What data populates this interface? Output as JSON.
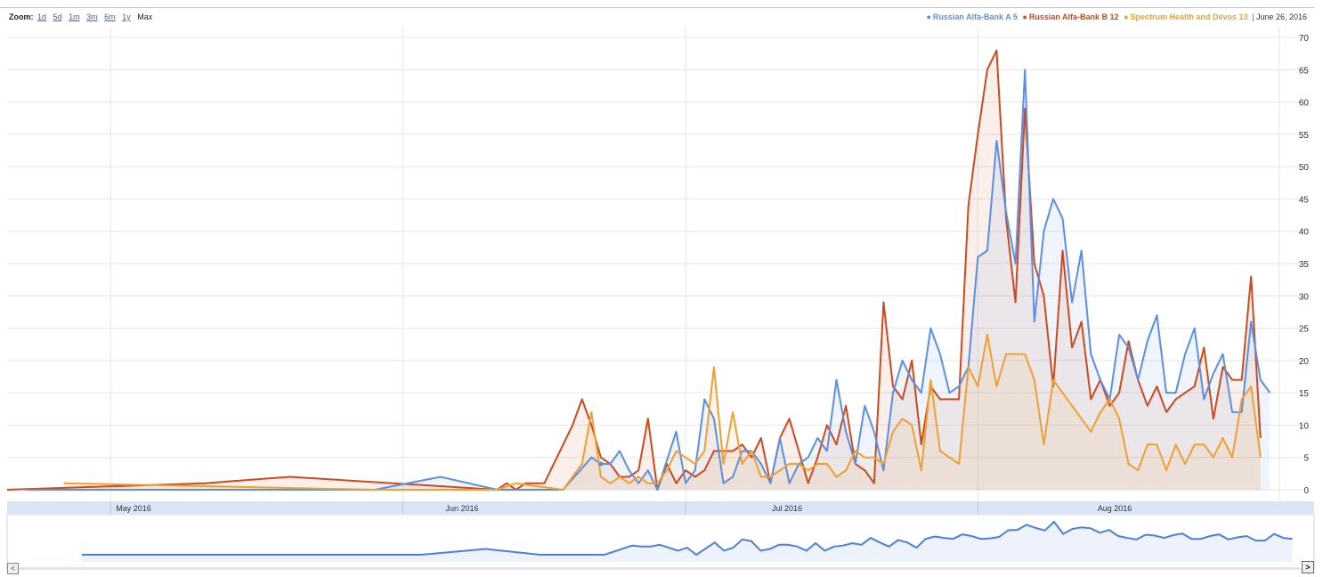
{
  "zoom": {
    "label": "Zoom:",
    "options": [
      "1d",
      "5d",
      "1m",
      "3m",
      "6m",
      "1y"
    ],
    "current": "Max"
  },
  "legend": {
    "items": [
      {
        "label": "Russian Alfa-Bank A 5",
        "color": "#5b8fe6"
      },
      {
        "label": "Russian Alfa-Bank B 12",
        "color": "#cc4a1e"
      },
      {
        "label": "Spectrum Health and Devos 13",
        "color": "#f0a030"
      }
    ],
    "date": "June 26, 2016"
  },
  "colors": {
    "axis_band": "#d9e4f5",
    "grid": "#e6e6e6",
    "navigator_line": "#4d7fe0",
    "navigator_fill": "#eef3fb"
  },
  "chart_data": {
    "type": "area",
    "title": "",
    "xlabel": "",
    "ylabel": "",
    "x_range": [
      "2016-04-20",
      "2016-09-02"
    ],
    "ylim": [
      0,
      70
    ],
    "y_ticks": [
      0,
      5,
      10,
      15,
      20,
      25,
      30,
      35,
      40,
      45,
      50,
      55,
      60,
      65,
      70
    ],
    "x_tick_labels": [
      {
        "label": "May 2016",
        "date": "2016-05-01"
      },
      {
        "label": "Jun 2016",
        "date": "2016-06-01"
      },
      {
        "label": "Jul 2016",
        "date": "2016-07-01"
      },
      {
        "label": "Aug 2016",
        "date": "2016-08-01"
      }
    ],
    "grid": true,
    "legend_position": "top-right",
    "series": [
      {
        "name": "Russian Alfa-Bank A 5",
        "color": "#5b8fe6",
        "points": [
          [
            "2016-04-22",
            0
          ],
          [
            "2016-05-29",
            0
          ],
          [
            "2016-06-05",
            2
          ],
          [
            "2016-06-11",
            0
          ],
          [
            "2016-06-18",
            0
          ],
          [
            "2016-06-21",
            5
          ],
          [
            "2016-06-22",
            4
          ],
          [
            "2016-06-23",
            4
          ],
          [
            "2016-06-24",
            6
          ],
          [
            "2016-06-25",
            3
          ],
          [
            "2016-06-26",
            1
          ],
          [
            "2016-06-27",
            3
          ],
          [
            "2016-06-28",
            0
          ],
          [
            "2016-06-30",
            9
          ],
          [
            "2016-07-01",
            1
          ],
          [
            "2016-07-02",
            3
          ],
          [
            "2016-07-03",
            14
          ],
          [
            "2016-07-04",
            11
          ],
          [
            "2016-07-05",
            1
          ],
          [
            "2016-07-06",
            2
          ],
          [
            "2016-07-07",
            6
          ],
          [
            "2016-07-08",
            6
          ],
          [
            "2016-07-09",
            4
          ],
          [
            "2016-07-10",
            1
          ],
          [
            "2016-07-11",
            8
          ],
          [
            "2016-07-12",
            1
          ],
          [
            "2016-07-13",
            4
          ],
          [
            "2016-07-14",
            5
          ],
          [
            "2016-07-15",
            8
          ],
          [
            "2016-07-16",
            6
          ],
          [
            "2016-07-17",
            17
          ],
          [
            "2016-07-18",
            9
          ],
          [
            "2016-07-19",
            4
          ],
          [
            "2016-07-20",
            13
          ],
          [
            "2016-07-21",
            9
          ],
          [
            "2016-07-22",
            3
          ],
          [
            "2016-07-23",
            15
          ],
          [
            "2016-07-24",
            20
          ],
          [
            "2016-07-25",
            17
          ],
          [
            "2016-07-26",
            15
          ],
          [
            "2016-07-27",
            25
          ],
          [
            "2016-07-28",
            21
          ],
          [
            "2016-07-29",
            15
          ],
          [
            "2016-07-30",
            16
          ],
          [
            "2016-07-31",
            19
          ],
          [
            "2016-08-01",
            36
          ],
          [
            "2016-08-02",
            37
          ],
          [
            "2016-08-03",
            54
          ],
          [
            "2016-08-04",
            43
          ],
          [
            "2016-08-05",
            35
          ],
          [
            "2016-08-06",
            65
          ],
          [
            "2016-08-07",
            26
          ],
          [
            "2016-08-08",
            40
          ],
          [
            "2016-08-09",
            45
          ],
          [
            "2016-08-10",
            42
          ],
          [
            "2016-08-11",
            29
          ],
          [
            "2016-08-12",
            37
          ],
          [
            "2016-08-13",
            21
          ],
          [
            "2016-08-14",
            17
          ],
          [
            "2016-08-15",
            14
          ],
          [
            "2016-08-16",
            24
          ],
          [
            "2016-08-17",
            22
          ],
          [
            "2016-08-18",
            17
          ],
          [
            "2016-08-19",
            23
          ],
          [
            "2016-08-20",
            27
          ],
          [
            "2016-08-21",
            15
          ],
          [
            "2016-08-22",
            15
          ],
          [
            "2016-08-23",
            21
          ],
          [
            "2016-08-24",
            25
          ],
          [
            "2016-08-25",
            14
          ],
          [
            "2016-08-26",
            18
          ],
          [
            "2016-08-27",
            21
          ],
          [
            "2016-08-28",
            12
          ],
          [
            "2016-08-29",
            12
          ],
          [
            "2016-08-30",
            26
          ],
          [
            "2016-08-31",
            17
          ],
          [
            "2016-09-01",
            15
          ]
        ]
      },
      {
        "name": "Russian Alfa-Bank B 12",
        "color": "#cc4a1e",
        "points": [
          [
            "2016-04-20",
            0
          ],
          [
            "2016-05-11",
            1
          ],
          [
            "2016-05-20",
            2
          ],
          [
            "2016-06-11",
            0
          ],
          [
            "2016-06-12",
            1
          ],
          [
            "2016-06-13",
            0
          ],
          [
            "2016-06-14",
            1
          ],
          [
            "2016-06-16",
            1
          ],
          [
            "2016-06-19",
            10
          ],
          [
            "2016-06-20",
            14
          ],
          [
            "2016-06-21",
            10
          ],
          [
            "2016-06-22",
            5
          ],
          [
            "2016-06-23",
            4
          ],
          [
            "2016-06-24",
            2
          ],
          [
            "2016-06-25",
            2
          ],
          [
            "2016-06-26",
            3
          ],
          [
            "2016-06-27",
            11
          ],
          [
            "2016-06-28",
            0
          ],
          [
            "2016-06-29",
            4
          ],
          [
            "2016-06-30",
            1
          ],
          [
            "2016-07-01",
            3
          ],
          [
            "2016-07-02",
            2
          ],
          [
            "2016-07-03",
            3
          ],
          [
            "2016-07-04",
            6
          ],
          [
            "2016-07-05",
            6
          ],
          [
            "2016-07-06",
            6
          ],
          [
            "2016-07-07",
            7
          ],
          [
            "2016-07-08",
            5
          ],
          [
            "2016-07-09",
            8
          ],
          [
            "2016-07-10",
            1
          ],
          [
            "2016-07-11",
            8
          ],
          [
            "2016-07-12",
            11
          ],
          [
            "2016-07-13",
            6
          ],
          [
            "2016-07-14",
            1
          ],
          [
            "2016-07-15",
            5
          ],
          [
            "2016-07-16",
            10
          ],
          [
            "2016-07-17",
            7
          ],
          [
            "2016-07-18",
            13
          ],
          [
            "2016-07-19",
            4
          ],
          [
            "2016-07-20",
            3
          ],
          [
            "2016-07-21",
            1
          ],
          [
            "2016-07-22",
            29
          ],
          [
            "2016-07-23",
            16
          ],
          [
            "2016-07-24",
            14
          ],
          [
            "2016-07-25",
            20
          ],
          [
            "2016-07-26",
            7
          ],
          [
            "2016-07-27",
            16
          ],
          [
            "2016-07-28",
            14
          ],
          [
            "2016-07-29",
            14
          ],
          [
            "2016-07-30",
            14
          ],
          [
            "2016-07-31",
            44
          ],
          [
            "2016-08-01",
            55
          ],
          [
            "2016-08-02",
            65
          ],
          [
            "2016-08-03",
            68
          ],
          [
            "2016-08-04",
            42
          ],
          [
            "2016-08-05",
            29
          ],
          [
            "2016-08-06",
            59
          ],
          [
            "2016-08-07",
            35
          ],
          [
            "2016-08-08",
            30
          ],
          [
            "2016-08-09",
            16
          ],
          [
            "2016-08-10",
            37
          ],
          [
            "2016-08-11",
            22
          ],
          [
            "2016-08-12",
            26
          ],
          [
            "2016-08-13",
            14
          ],
          [
            "2016-08-14",
            17
          ],
          [
            "2016-08-15",
            13
          ],
          [
            "2016-08-16",
            15
          ],
          [
            "2016-08-17",
            23
          ],
          [
            "2016-08-18",
            17
          ],
          [
            "2016-08-19",
            13
          ],
          [
            "2016-08-20",
            16
          ],
          [
            "2016-08-21",
            12
          ],
          [
            "2016-08-22",
            14
          ],
          [
            "2016-08-23",
            15
          ],
          [
            "2016-08-24",
            16
          ],
          [
            "2016-08-25",
            22
          ],
          [
            "2016-08-26",
            11
          ],
          [
            "2016-08-27",
            19
          ],
          [
            "2016-08-28",
            17
          ],
          [
            "2016-08-29",
            17
          ],
          [
            "2016-08-30",
            33
          ],
          [
            "2016-08-31",
            8
          ]
        ]
      },
      {
        "name": "Spectrum Health and Devos 13",
        "color": "#f0a030",
        "points": [
          [
            "2016-04-26",
            1
          ],
          [
            "2016-05-29",
            0
          ],
          [
            "2016-06-11",
            0
          ],
          [
            "2016-06-13",
            1
          ],
          [
            "2016-06-18",
            0
          ],
          [
            "2016-06-20",
            4
          ],
          [
            "2016-06-21",
            12
          ],
          [
            "2016-06-22",
            2
          ],
          [
            "2016-06-23",
            1
          ],
          [
            "2016-06-24",
            2
          ],
          [
            "2016-06-25",
            1
          ],
          [
            "2016-06-26",
            2
          ],
          [
            "2016-06-27",
            1
          ],
          [
            "2016-06-28",
            1
          ],
          [
            "2016-06-29",
            3
          ],
          [
            "2016-06-30",
            6
          ],
          [
            "2016-07-01",
            5
          ],
          [
            "2016-07-02",
            4
          ],
          [
            "2016-07-03",
            6
          ],
          [
            "2016-07-04",
            19
          ],
          [
            "2016-07-05",
            4
          ],
          [
            "2016-07-06",
            12
          ],
          [
            "2016-07-07",
            4
          ],
          [
            "2016-07-08",
            6
          ],
          [
            "2016-07-09",
            2
          ],
          [
            "2016-07-10",
            2
          ],
          [
            "2016-07-11",
            3
          ],
          [
            "2016-07-12",
            4
          ],
          [
            "2016-07-13",
            4
          ],
          [
            "2016-07-14",
            3
          ],
          [
            "2016-07-15",
            4
          ],
          [
            "2016-07-16",
            4
          ],
          [
            "2016-07-17",
            2
          ],
          [
            "2016-07-18",
            3
          ],
          [
            "2016-07-19",
            6
          ],
          [
            "2016-07-20",
            5
          ],
          [
            "2016-07-21",
            5
          ],
          [
            "2016-07-22",
            4
          ],
          [
            "2016-07-23",
            9
          ],
          [
            "2016-07-24",
            11
          ],
          [
            "2016-07-25",
            10
          ],
          [
            "2016-07-26",
            3
          ],
          [
            "2016-07-27",
            17
          ],
          [
            "2016-07-28",
            6
          ],
          [
            "2016-07-29",
            5
          ],
          [
            "2016-07-30",
            4
          ],
          [
            "2016-07-31",
            19
          ],
          [
            "2016-08-01",
            16
          ],
          [
            "2016-08-02",
            24
          ],
          [
            "2016-08-03",
            16
          ],
          [
            "2016-08-04",
            21
          ],
          [
            "2016-08-05",
            21
          ],
          [
            "2016-08-06",
            21
          ],
          [
            "2016-08-07",
            17
          ],
          [
            "2016-08-08",
            7
          ],
          [
            "2016-08-09",
            17
          ],
          [
            "2016-08-10",
            15
          ],
          [
            "2016-08-11",
            13
          ],
          [
            "2016-08-12",
            11
          ],
          [
            "2016-08-13",
            9
          ],
          [
            "2016-08-14",
            12
          ],
          [
            "2016-08-15",
            14
          ],
          [
            "2016-08-16",
            11
          ],
          [
            "2016-08-17",
            4
          ],
          [
            "2016-08-18",
            3
          ],
          [
            "2016-08-19",
            7
          ],
          [
            "2016-08-20",
            7
          ],
          [
            "2016-08-21",
            3
          ],
          [
            "2016-08-22",
            7
          ],
          [
            "2016-08-23",
            4
          ],
          [
            "2016-08-24",
            7
          ],
          [
            "2016-08-25",
            7
          ],
          [
            "2016-08-26",
            5
          ],
          [
            "2016-08-27",
            8
          ],
          [
            "2016-08-28",
            5
          ],
          [
            "2016-08-29",
            14
          ],
          [
            "2016-08-30",
            16
          ],
          [
            "2016-08-31",
            5
          ]
        ]
      }
    ]
  }
}
